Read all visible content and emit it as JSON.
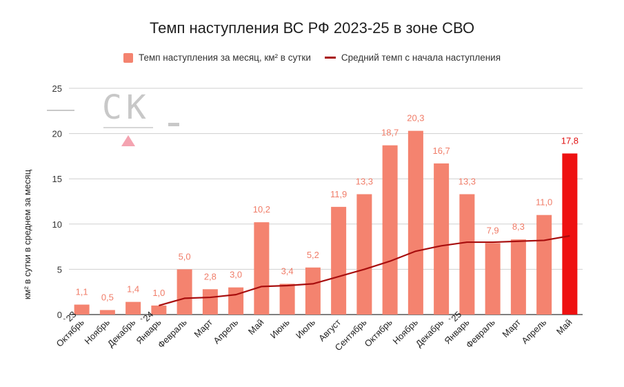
{
  "chart_data": {
    "type": "bar",
    "title": "Темп наступления ВС РФ 2023-25 в зоне СВО",
    "ylabel": "км² в сутки в среднем за месяц",
    "xlabel": "",
    "ylim": [
      0,
      25
    ],
    "yticks": [
      "0",
      "5",
      "10",
      "15",
      "20",
      "25"
    ],
    "grid": true,
    "legend_position": "top",
    "categories": [
      "`23 Октябрь",
      "Ноябрь",
      "Декабрь",
      "`24 Январь",
      "Февраль",
      "Март",
      "Апрель",
      "Май",
      "Июнь",
      "Июль",
      "Август",
      "Сентябрь",
      "Октябрь",
      "Ноябрь",
      "Декабрь",
      "`25 Январь",
      "Февраль",
      "Март",
      "Апрель",
      "Май"
    ],
    "tick_labels": [
      {
        "prefix": "`23",
        "text": "Октябрь"
      },
      {
        "prefix": "",
        "text": "Ноябрь"
      },
      {
        "prefix": "",
        "text": "Декабрь"
      },
      {
        "prefix": "`24",
        "text": "Январь"
      },
      {
        "prefix": "",
        "text": "Февраль"
      },
      {
        "prefix": "",
        "text": "Март"
      },
      {
        "prefix": "",
        "text": "Апрель"
      },
      {
        "prefix": "",
        "text": "Май"
      },
      {
        "prefix": "",
        "text": "Июнь"
      },
      {
        "prefix": "",
        "text": "Июль"
      },
      {
        "prefix": "",
        "text": "Август"
      },
      {
        "prefix": "",
        "text": "Сентябрь"
      },
      {
        "prefix": "",
        "text": "Октябрь"
      },
      {
        "prefix": "",
        "text": "Ноябрь"
      },
      {
        "prefix": "",
        "text": "Декабрь"
      },
      {
        "prefix": "`25",
        "text": "Январь"
      },
      {
        "prefix": "",
        "text": "Февраль"
      },
      {
        "prefix": "",
        "text": "Март"
      },
      {
        "prefix": "",
        "text": "Апрель"
      },
      {
        "prefix": "",
        "text": "Май"
      }
    ],
    "series": [
      {
        "name": "Темп наступления за месяц, км² в сутки",
        "type": "bar",
        "color": "#f4836f",
        "highlight_color": "#ee1111",
        "highlight_index": 19,
        "values": [
          1.1,
          0.5,
          1.4,
          1.0,
          5.0,
          2.8,
          3.0,
          10.2,
          3.4,
          5.2,
          11.9,
          13.3,
          18.7,
          20.3,
          16.7,
          13.3,
          7.9,
          8.3,
          11.0,
          17.8
        ],
        "labels": [
          "1,1",
          "0,5",
          "1,4",
          "1,0",
          "5,0",
          "2,8",
          "3,0",
          "10,2",
          "3,4",
          "5,2",
          "11,9",
          "13,3",
          "18,7",
          "20,3",
          "16,7",
          "13,3",
          "7,9",
          "8,3",
          "11,0",
          "17,8"
        ]
      },
      {
        "name": "Средний темп с начала наступления",
        "type": "line",
        "color": "#a80d0d",
        "values": [
          null,
          null,
          null,
          1.0,
          1.8,
          1.9,
          2.2,
          3.1,
          3.2,
          3.4,
          4.2,
          5.0,
          5.9,
          7.0,
          7.6,
          8.0,
          8.0,
          8.1,
          8.2,
          8.7
        ]
      }
    ]
  },
  "watermark": {
    "text": "СК",
    "color": "#c8c8c8",
    "accent": "#f4a3b0"
  }
}
